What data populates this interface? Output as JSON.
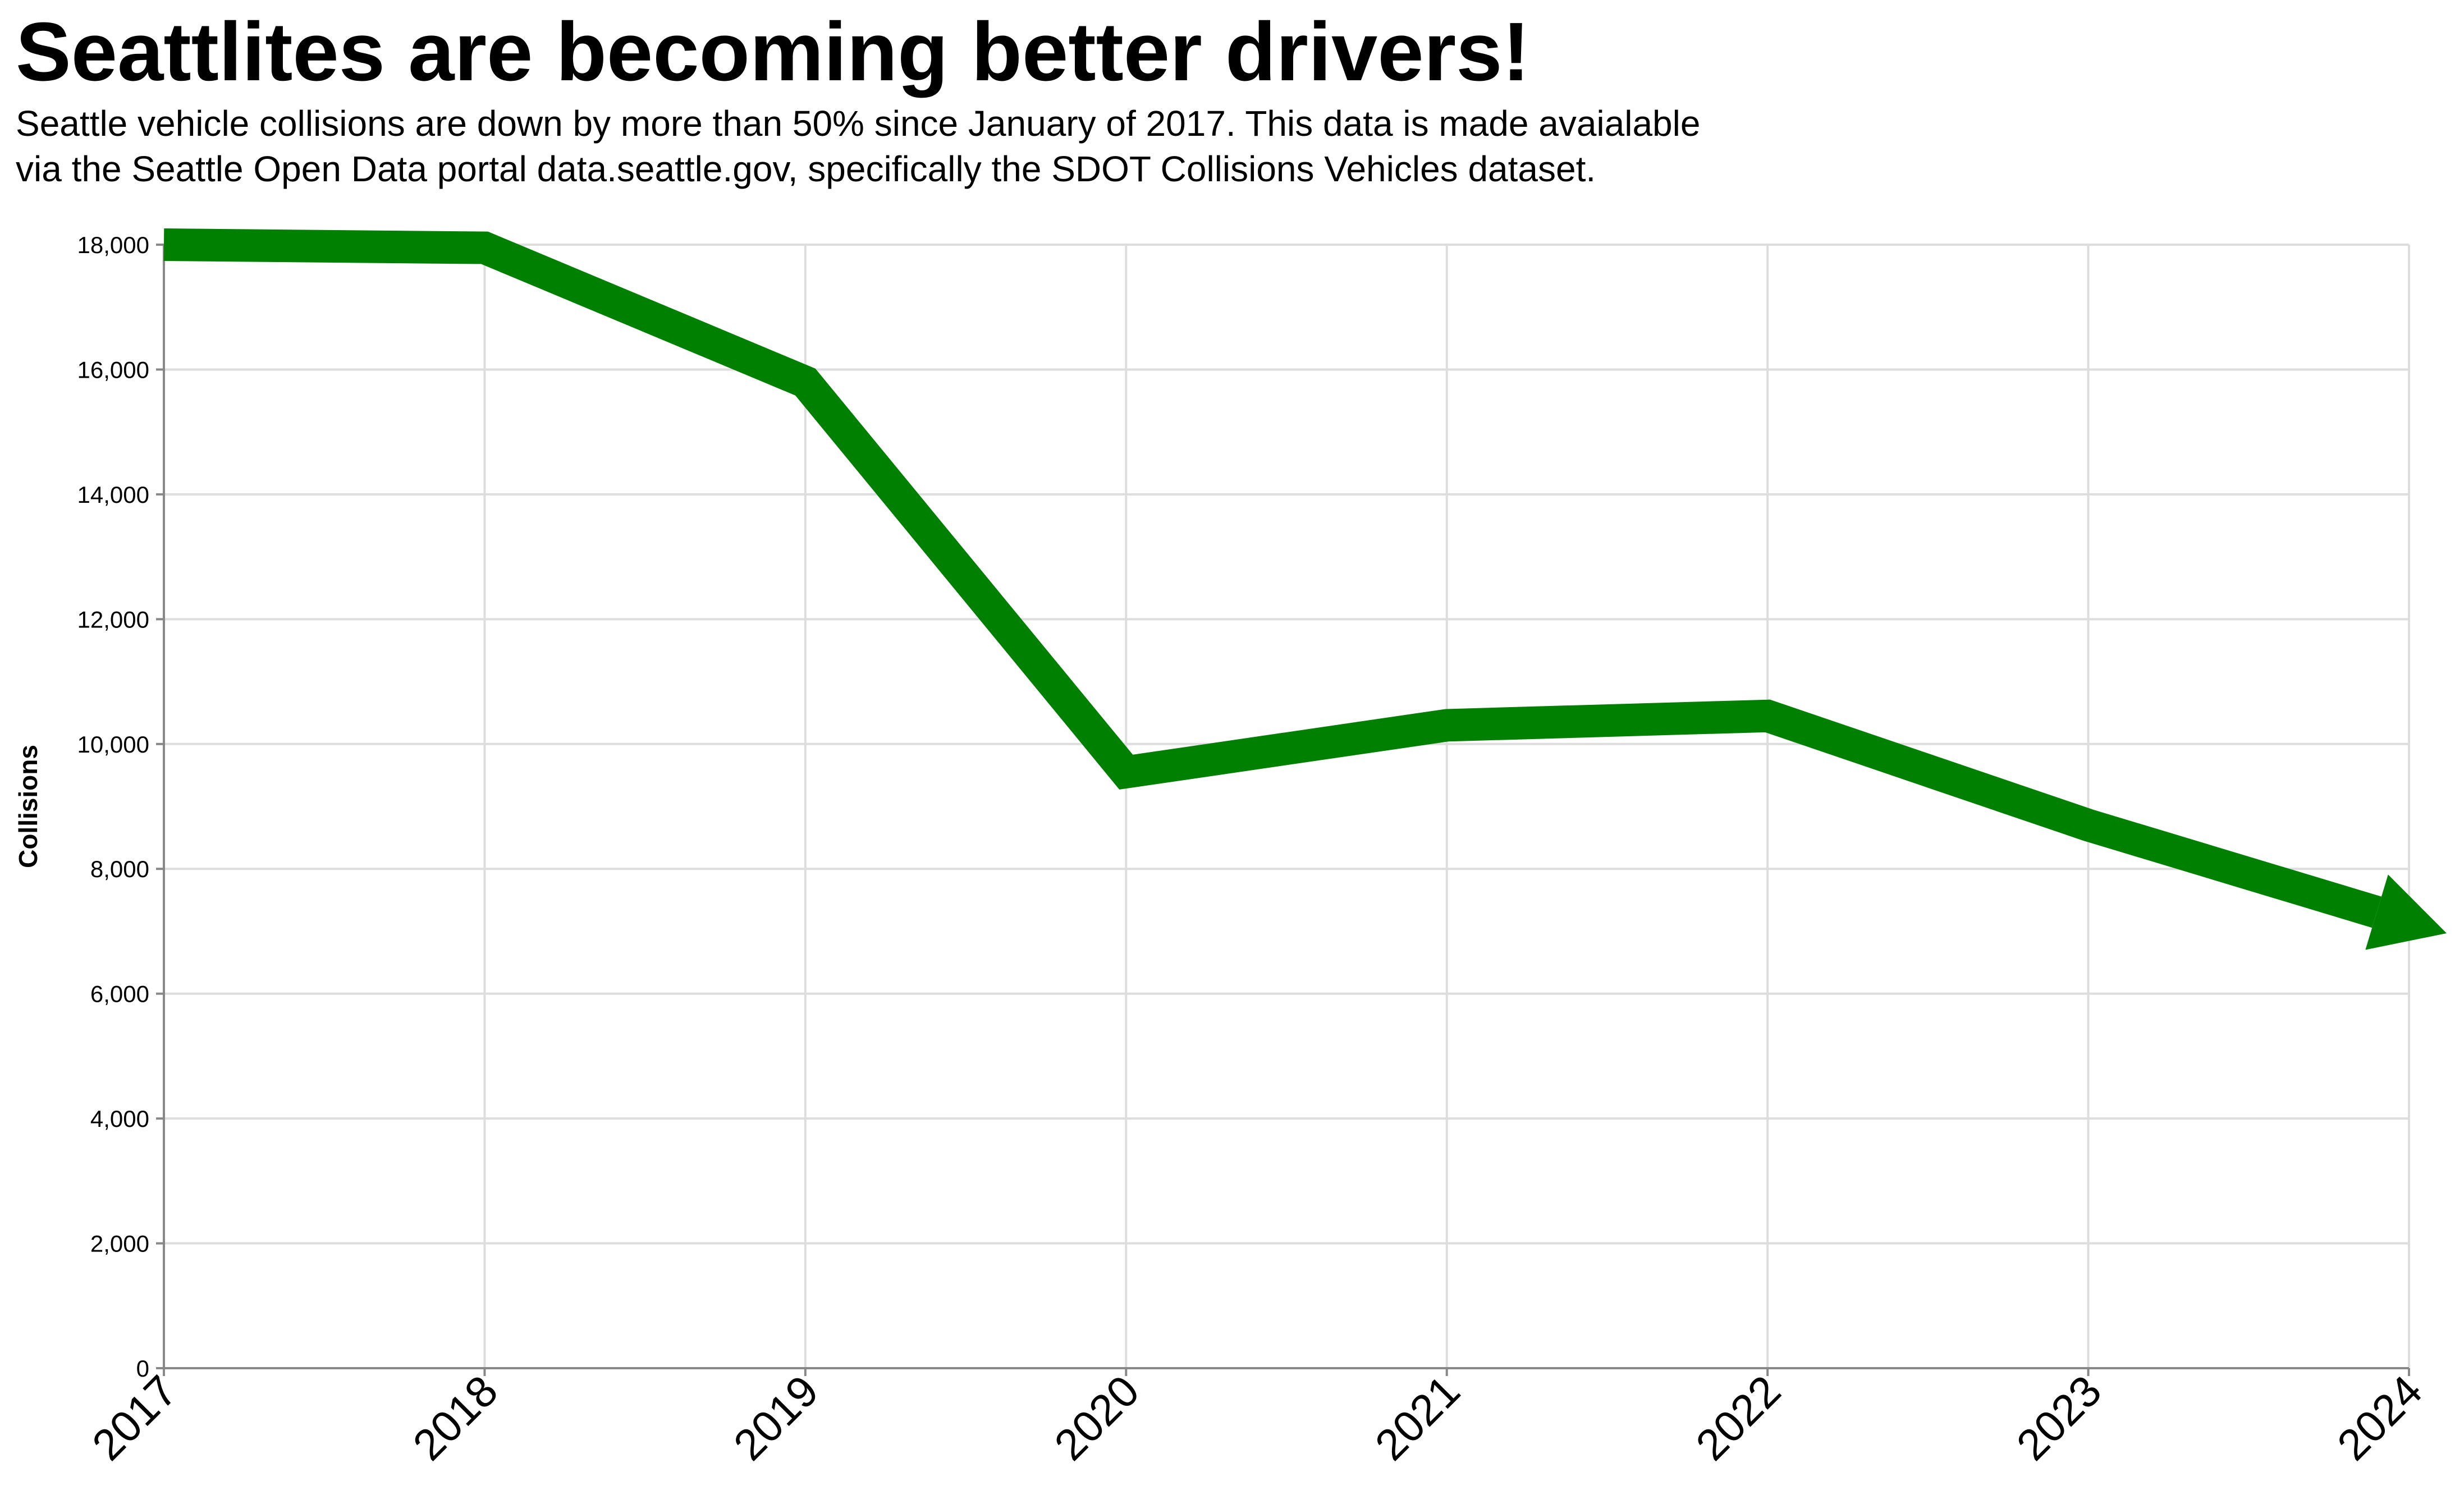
{
  "title": "Seattlites are becoming better drivers!",
  "subtitle": [
    "Seattle vehicle collisions are down by more than 50% since January of 2017. This data is made avaialable",
    "via the Seattle Open Data portal data.seattle.gov, specifically the SDOT Collisions Vehicles dataset."
  ],
  "colors": {
    "line": "#008000",
    "grid": "#dddddd",
    "axis": "#888888",
    "text": "#000000"
  },
  "chart_data": {
    "type": "line",
    "title": "Seattlites are becoming better drivers!",
    "xlabel": "",
    "ylabel": "Collisions",
    "x": [
      "2017",
      "2018",
      "2019",
      "2020",
      "2021",
      "2022",
      "2023",
      "2024"
    ],
    "series": [
      {
        "values": [
          18000,
          17950,
          15800,
          9550,
          10300,
          10450,
          8700,
          7150
        ]
      }
    ],
    "ylim": [
      0,
      18000
    ],
    "yticks": [
      0,
      2000,
      4000,
      6000,
      8000,
      10000,
      12000,
      14000,
      16000,
      18000
    ],
    "grid": true,
    "legend": "none",
    "line_end": "arrow"
  }
}
